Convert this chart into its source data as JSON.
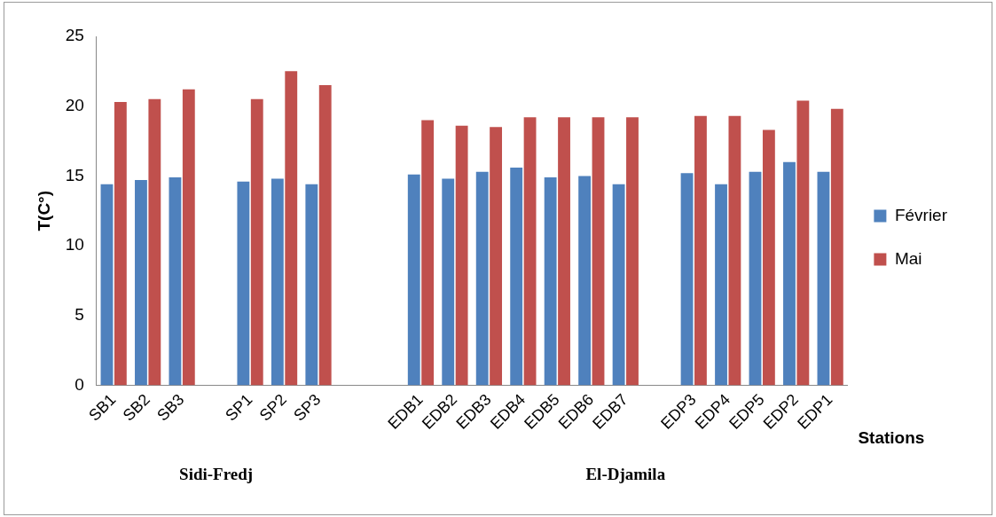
{
  "chart_data": {
    "type": "bar",
    "ylabel": "T(C°)",
    "xlabel": "Stations",
    "categories": [
      "SB1",
      "SB2",
      "SB3",
      null,
      "SP1",
      "SP2",
      "SP3",
      null,
      null,
      "EDB1",
      "EDB2",
      "EDB3",
      "EDB4",
      "EDB5",
      "EDB6",
      "EDB7",
      null,
      "EDP3",
      "EDP4",
      "EDP5",
      "EDP2",
      "EDP1"
    ],
    "series": [
      {
        "name": "Février",
        "color": "#4f81bd",
        "values": [
          14.4,
          14.7,
          14.9,
          null,
          14.6,
          14.8,
          14.4,
          null,
          null,
          15.1,
          14.8,
          15.3,
          15.6,
          14.9,
          15.0,
          14.4,
          null,
          15.2,
          14.4,
          15.3,
          16.0,
          15.3
        ]
      },
      {
        "name": "Mai",
        "color": "#c0504d",
        "values": [
          20.3,
          20.5,
          21.2,
          null,
          20.5,
          22.5,
          21.5,
          null,
          null,
          19.0,
          18.6,
          18.5,
          19.2,
          19.2,
          19.2,
          19.2,
          null,
          19.3,
          19.3,
          18.3,
          20.4,
          19.8
        ]
      }
    ],
    "ylim": [
      0,
      25
    ],
    "yticks": [
      0,
      5,
      10,
      15,
      20,
      25
    ],
    "grid": false,
    "legend": "right",
    "annotations": [
      "Sidi-Fredj",
      "El-Djamila"
    ]
  }
}
